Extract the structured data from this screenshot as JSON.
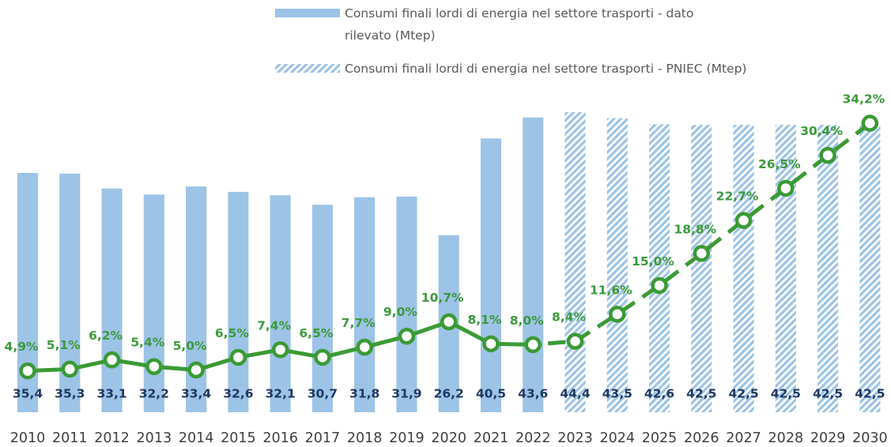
{
  "chart_data": {
    "type": "bar",
    "categories": [
      "2010",
      "2011",
      "2012",
      "2013",
      "2014",
      "2015",
      "2016",
      "2017",
      "2018",
      "2019",
      "2020",
      "2021",
      "2022",
      "2023",
      "2024",
      "2025",
      "2026",
      "2027",
      "2028",
      "2029",
      "2030"
    ],
    "ylim": [
      0,
      50
    ],
    "y2lim": [
      0,
      40
    ],
    "series": [
      {
        "name": "Consumi finali lordi di energia nel settore trasporti - dato rilevato (Mtep)",
        "type": "bar",
        "color": "#9dc3e6",
        "values": [
          35.4,
          35.3,
          33.1,
          32.2,
          33.4,
          32.6,
          32.1,
          30.7,
          31.8,
          31.9,
          26.2,
          40.5,
          43.6,
          null,
          null,
          null,
          null,
          null,
          null,
          null,
          null
        ],
        "value_labels": [
          "35,4",
          "35,3",
          "33,1",
          "32,2",
          "33,4",
          "32,6",
          "32,1",
          "30,7",
          "31,8",
          "31,9",
          "26,2",
          "40,5",
          "43,6",
          null,
          null,
          null,
          null,
          null,
          null,
          null,
          null
        ]
      },
      {
        "name": "Consumi finali lordi di energia nel settore trasporti - PNIEC (Mtep)",
        "type": "bar",
        "color": "#9dc3e6",
        "hatched": true,
        "values": [
          null,
          null,
          null,
          null,
          null,
          null,
          null,
          null,
          null,
          null,
          null,
          null,
          null,
          44.4,
          43.5,
          42.6,
          42.5,
          42.5,
          42.5,
          42.5,
          42.5
        ],
        "value_labels": [
          null,
          null,
          null,
          null,
          null,
          null,
          null,
          null,
          null,
          null,
          null,
          null,
          null,
          "44,4",
          "43,5",
          "42,6",
          "42,5",
          "42,5",
          "42,5",
          "42,5",
          "42,5"
        ]
      },
      {
        "type": "line",
        "axis": "y2",
        "color": "#3a9a34",
        "dashed": false,
        "values": [
          4.9,
          5.1,
          6.2,
          5.4,
          5.0,
          6.5,
          7.4,
          6.5,
          7.7,
          9.0,
          10.7,
          8.1,
          8.0,
          null,
          null,
          null,
          null,
          null,
          null,
          null,
          null
        ],
        "value_labels": [
          "4,9%",
          "5,1%",
          "6,2%",
          "5,4%",
          "5,0%",
          "6,5%",
          "7,4%",
          "6,5%",
          "7,7%",
          "9,0%",
          "10,7%",
          "8,1%",
          "8,0%",
          null,
          null,
          null,
          null,
          null,
          null,
          null,
          null
        ]
      },
      {
        "type": "line",
        "axis": "y2",
        "color": "#3a9a34",
        "dashed": true,
        "values": [
          null,
          null,
          null,
          null,
          null,
          null,
          null,
          null,
          null,
          null,
          null,
          null,
          null,
          8.4,
          11.6,
          15.0,
          18.8,
          22.7,
          26.5,
          30.4,
          34.2
        ],
        "value_labels": [
          null,
          null,
          null,
          null,
          null,
          null,
          null,
          null,
          null,
          null,
          null,
          null,
          null,
          "8,4%",
          "11,6%",
          "15,0%",
          "18,8%",
          "22,7%",
          "26,5%",
          "30,4%",
          "34,2%"
        ]
      }
    ]
  }
}
